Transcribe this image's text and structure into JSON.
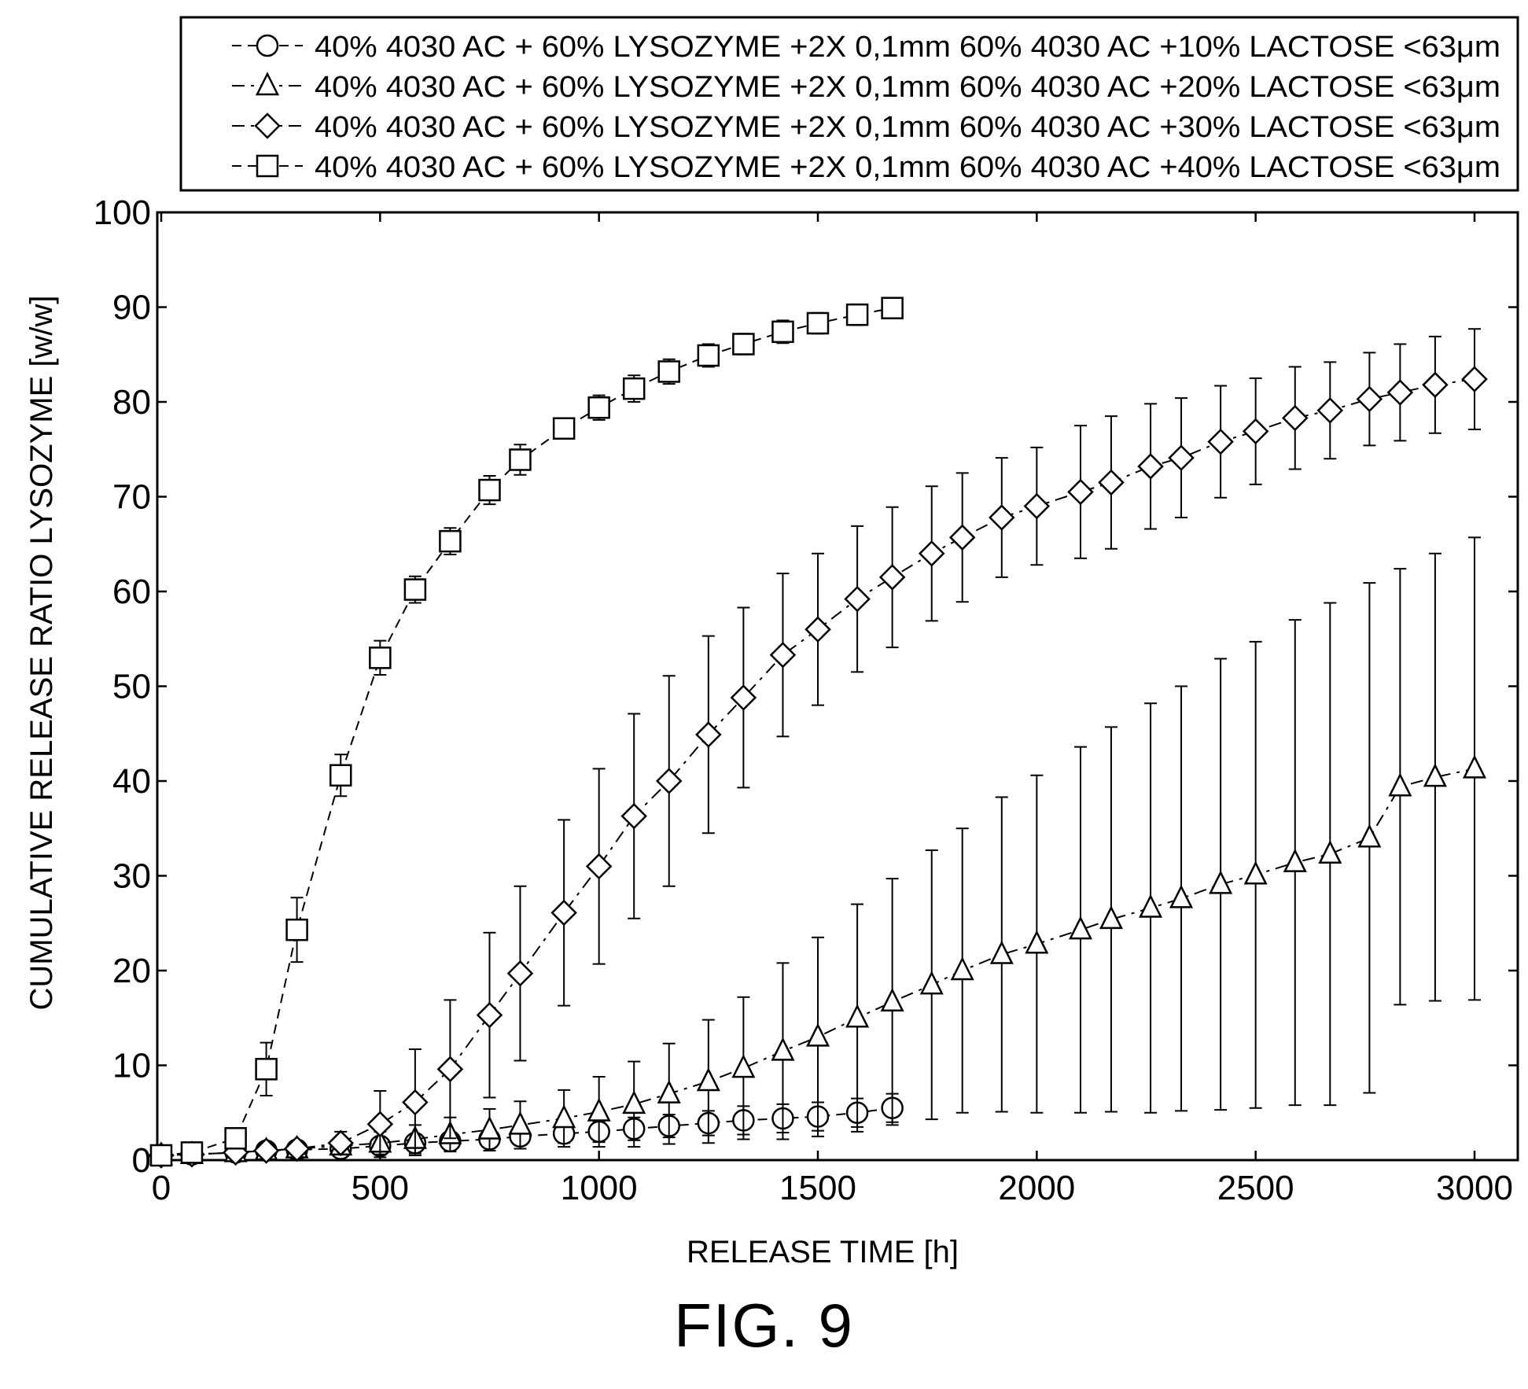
{
  "figure": {
    "caption": "FIG. 9"
  },
  "chart_data": {
    "type": "line",
    "xlabel": "RELEASE TIME [h]",
    "ylabel": "CUMULATIVE RELEASE RATIO LYSOZYME [w/w]",
    "xlim": [
      0,
      3000
    ],
    "ylim": [
      0,
      100
    ],
    "xticks": [
      0,
      500,
      1000,
      1500,
      2000,
      2500,
      3000
    ],
    "yticks": [
      0,
      10,
      20,
      30,
      40,
      50,
      60,
      70,
      80,
      90,
      100
    ],
    "grid": false,
    "legend_position": "top, above plot",
    "series": [
      {
        "name": "40% 4030 AC + 60% LYSOZYME +2X 0,1mm 60% 4030 AC +10% LACTOSE <63μm",
        "marker": "circle",
        "line": "dashed",
        "x": [
          0,
          70,
          170,
          240,
          310,
          410,
          500,
          580,
          660,
          750,
          820,
          920,
          1000,
          1080,
          1160,
          1250,
          1330,
          1420,
          1500,
          1590,
          1670
        ],
        "y": [
          0.5,
          0.6,
          0.8,
          1.0,
          1.1,
          1.2,
          1.5,
          1.8,
          2.0,
          2.2,
          2.5,
          2.8,
          3.0,
          3.3,
          3.6,
          3.9,
          4.2,
          4.4,
          4.6,
          5.0,
          5.5
        ],
        "err": [
          0.2,
          0.2,
          0.3,
          0.3,
          0.3,
          0.4,
          0.5,
          0.6,
          0.7,
          0.8,
          0.9,
          1.0,
          1.1,
          1.2,
          1.2,
          1.3,
          1.5,
          1.5,
          1.5,
          1.5,
          1.5
        ]
      },
      {
        "name": "40% 4030 AC + 60% LYSOZYME +2X 0,1mm 60% 4030 AC +20% LACTOSE <63μm",
        "marker": "triangle",
        "line": "dash-dot",
        "x": [
          0,
          70,
          170,
          240,
          310,
          410,
          500,
          580,
          660,
          750,
          820,
          920,
          1000,
          1080,
          1160,
          1250,
          1330,
          1420,
          1500,
          1590,
          1670,
          1760,
          1830,
          1920,
          2000,
          2100,
          2170,
          2260,
          2330,
          2420,
          2500,
          2590,
          2670,
          2760,
          2830,
          2910,
          3000
        ],
        "y": [
          0.5,
          0.6,
          0.8,
          1.0,
          1.2,
          1.5,
          1.8,
          2.2,
          2.7,
          3.2,
          3.7,
          4.4,
          5.1,
          5.9,
          7.0,
          8.3,
          9.7,
          11.5,
          13.0,
          15.0,
          16.7,
          18.5,
          20.0,
          21.7,
          22.8,
          24.3,
          25.4,
          26.6,
          27.6,
          29.1,
          30.1,
          31.4,
          32.3,
          34.0,
          39.4,
          40.4,
          41.3
        ],
        "err": [
          0.2,
          0.2,
          0.3,
          0.4,
          0.5,
          0.9,
          1.2,
          1.5,
          1.8,
          2.2,
          2.5,
          3.0,
          3.7,
          4.5,
          5.3,
          6.5,
          7.5,
          9.3,
          10.5,
          12.0,
          13.0,
          14.2,
          15.0,
          16.6,
          17.8,
          19.3,
          20.3,
          21.6,
          22.4,
          23.8,
          24.6,
          25.6,
          26.5,
          26.9,
          23.0,
          23.6,
          24.4
        ]
      },
      {
        "name": "40% 4030 AC + 60% LYSOZYME +2X 0,1mm 60% 4030 AC +30% LACTOSE <63μm",
        "marker": "diamond",
        "line": "dash-dot",
        "x": [
          0,
          70,
          170,
          240,
          310,
          410,
          500,
          580,
          660,
          750,
          820,
          920,
          1000,
          1080,
          1160,
          1250,
          1330,
          1420,
          1500,
          1590,
          1670,
          1760,
          1830,
          1920,
          2000,
          2100,
          2170,
          2260,
          2330,
          2420,
          2500,
          2590,
          2670,
          2760,
          2830,
          2910,
          3000
        ],
        "y": [
          0.5,
          0.6,
          0.8,
          1.0,
          1.2,
          1.8,
          3.8,
          6.1,
          9.6,
          15.3,
          19.7,
          26.1,
          31.0,
          36.3,
          40.0,
          44.9,
          48.8,
          53.3,
          56.0,
          59.2,
          61.5,
          64.0,
          65.7,
          67.8,
          69.0,
          70.5,
          71.5,
          73.2,
          74.1,
          75.8,
          76.9,
          78.3,
          79.1,
          80.3,
          81.0,
          81.8,
          82.4
        ],
        "err": [
          0.2,
          0.2,
          0.3,
          0.4,
          0.4,
          1.2,
          3.5,
          5.6,
          7.3,
          8.7,
          9.2,
          9.8,
          10.3,
          10.8,
          11.1,
          10.4,
          9.5,
          8.6,
          8.0,
          7.7,
          7.4,
          7.1,
          6.8,
          6.3,
          6.2,
          7.0,
          7.0,
          6.6,
          6.3,
          5.9,
          5.6,
          5.4,
          5.1,
          4.9,
          5.1,
          5.1,
          5.3
        ]
      },
      {
        "name": "40% 4030 AC + 60% LYSOZYME +2X 0,1mm 60% 4030 AC +40% LACTOSE <63μm",
        "marker": "square",
        "line": "dashed",
        "x": [
          0,
          70,
          170,
          240,
          310,
          410,
          500,
          580,
          660,
          750,
          820,
          920,
          1000,
          1080,
          1160,
          1250,
          1330,
          1420,
          1500,
          1590,
          1670
        ],
        "y": [
          0.5,
          0.8,
          2.3,
          9.6,
          24.3,
          40.6,
          53.0,
          60.2,
          65.3,
          70.7,
          73.9,
          77.2,
          79.4,
          81.4,
          83.2,
          84.9,
          86.1,
          87.4,
          88.3,
          89.2,
          89.9
        ],
        "err": [
          0.3,
          0.3,
          0.5,
          2.8,
          3.4,
          2.2,
          1.8,
          1.4,
          1.4,
          1.5,
          1.6,
          1.0,
          1.3,
          1.4,
          1.3,
          1.2,
          1.1,
          1.2,
          1.1,
          1.1,
          1.0
        ]
      }
    ]
  }
}
